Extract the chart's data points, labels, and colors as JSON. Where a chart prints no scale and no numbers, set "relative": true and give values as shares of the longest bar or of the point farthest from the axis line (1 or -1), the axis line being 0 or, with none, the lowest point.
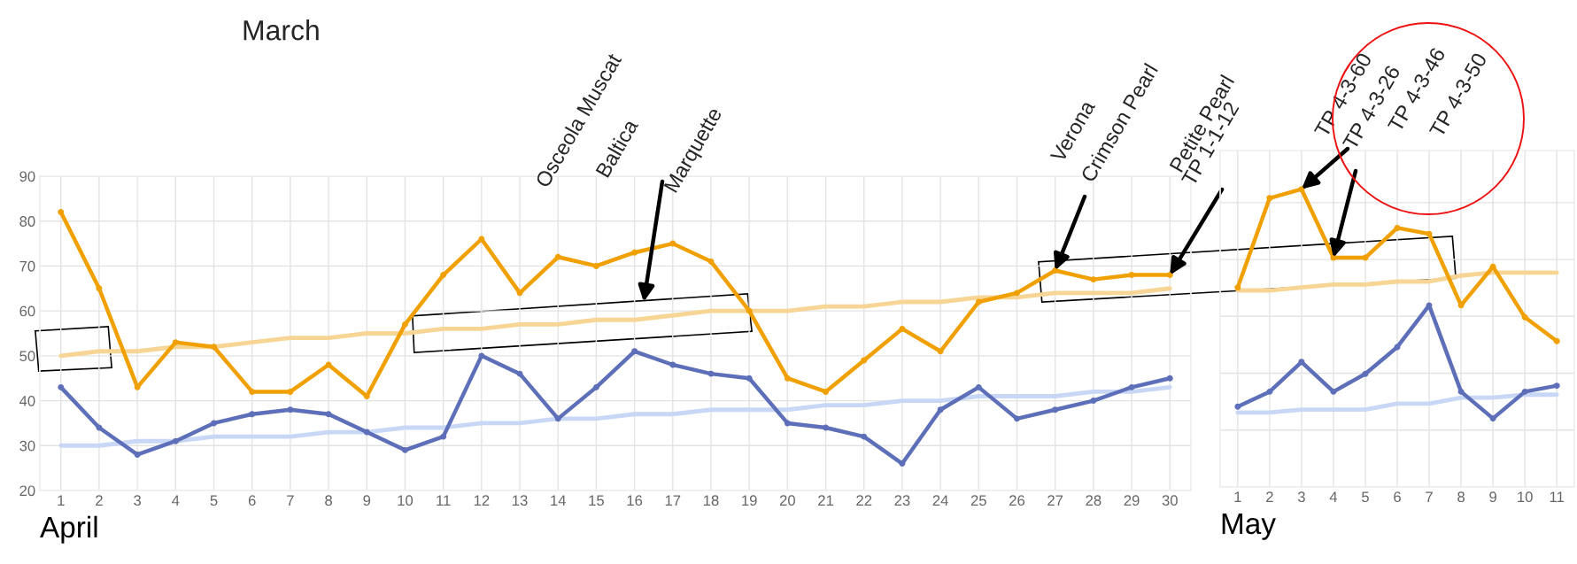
{
  "chart_data": [
    {
      "type": "line",
      "xlabel": "April",
      "categories": [
        "1",
        "2",
        "3",
        "4",
        "5",
        "6",
        "7",
        "8",
        "9",
        "10",
        "11",
        "12",
        "13",
        "14",
        "15",
        "16",
        "17",
        "18",
        "19",
        "20",
        "21",
        "22",
        "23",
        "24",
        "25",
        "26",
        "27",
        "28",
        "29",
        "30"
      ],
      "series": [
        {
          "color": "#f6d595",
          "values": [
            50,
            51,
            51,
            52,
            52,
            53,
            54,
            54,
            55,
            55,
            56,
            56,
            57,
            57,
            58,
            58,
            59,
            60,
            60,
            60,
            61,
            61,
            62,
            62,
            63,
            63,
            64,
            64,
            64,
            65
          ]
        },
        {
          "color": "#c9d7f6",
          "values": [
            30,
            30,
            31,
            31,
            32,
            32,
            32,
            33,
            33,
            34,
            34,
            35,
            35,
            36,
            36,
            37,
            37,
            38,
            38,
            38,
            39,
            39,
            40,
            40,
            41,
            41,
            41,
            42,
            42,
            43
          ]
        },
        {
          "color": "#f0a000",
          "marker": "circle",
          "values": [
            82,
            65,
            43,
            53,
            52,
            42,
            42,
            48,
            41,
            57,
            68,
            76,
            64,
            72,
            70,
            73,
            75,
            71,
            60,
            45,
            42,
            49,
            56,
            51,
            62,
            64,
            69,
            67,
            68,
            68
          ]
        },
        {
          "color": "#5d6fb8",
          "marker": "circle",
          "values": [
            43,
            34,
            28,
            31,
            35,
            37,
            38,
            37,
            33,
            29,
            32,
            50,
            46,
            36,
            43,
            51,
            48,
            46,
            45,
            35,
            34,
            32,
            26,
            38,
            43,
            36,
            38,
            40,
            43,
            45
          ]
        }
      ],
      "ylim": [
        20,
        90
      ],
      "yticks": [
        20,
        30,
        40,
        50,
        60,
        70,
        80,
        90
      ],
      "grid": true,
      "annotations": [
        "March",
        "Osceola Muscat",
        "Baltica",
        "Marquette",
        "Verona",
        {
          "text": "Crimson Pearl",
          "x": "27",
          "y": 69
        },
        "Petite Pearl",
        {
          "text": "TP 1-1-12",
          "x": "30",
          "y": 68
        }
      ]
    },
    {
      "type": "line",
      "xlabel": "May",
      "relative": true,
      "tick_labels": "x",
      "categories": [
        "1",
        "2",
        "3",
        "4",
        "5",
        "6",
        "7",
        "8",
        "9",
        "10",
        "11"
      ],
      "series": [
        {
          "color": "#f6d595",
          "values": [
            0.66,
            0.66,
            0.67,
            0.68,
            0.68,
            0.69,
            0.69,
            0.71,
            0.72,
            0.72,
            0.72
          ]
        },
        {
          "color": "#c9d7f6",
          "values": [
            0.25,
            0.25,
            0.26,
            0.26,
            0.26,
            0.28,
            0.28,
            0.3,
            0.3,
            0.31,
            0.31
          ]
        },
        {
          "color": "#f0a000",
          "marker": "circle",
          "values": [
            0.67,
            0.97,
            1,
            0.77,
            0.77,
            0.87,
            0.85,
            0.61,
            0.74,
            0.57,
            0.49
          ]
        },
        {
          "color": "#5d6fb8",
          "marker": "circle",
          "values": [
            0.27,
            0.32,
            0.42,
            0.32,
            0.38,
            0.47,
            0.61,
            0.32,
            0.23,
            0.32,
            0.34
          ]
        }
      ],
      "grid": true,
      "annotations": [
        {
          "text": "TP 4-3-60",
          "x": "3",
          "y": 1
        },
        {
          "text": "TP 4-3-26",
          "x": "4",
          "y": 0.77
        },
        "TP 4-3-46",
        "TP 4-3-50"
      ]
    }
  ]
}
